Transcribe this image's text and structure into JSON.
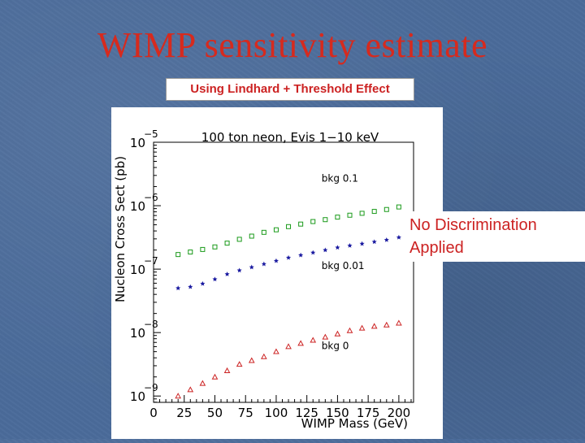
{
  "slide": {
    "title": "WIMP sensitivity estimate",
    "subtitle": "Using Lindhard + Threshold Effect",
    "note_line1": "No Discrimination",
    "note_line2": "Applied"
  },
  "colors": {
    "title": "#d62a1e",
    "background": "#4a6b9a",
    "bkg_0_1": "#1a9a1a",
    "bkg_0_01": "#1a1aa0",
    "bkg_0": "#cc2222"
  },
  "chart_data": {
    "type": "scatter",
    "title": "100 ton neon, Evis 1−10 keV",
    "xlabel": "WIMP Mass (GeV)",
    "ylabel": "Nucleon Cross Sect (pb)",
    "xlim": [
      0,
      212
    ],
    "ylim": [
      -9.1,
      -5
    ],
    "yscale": "log",
    "x_ticks": [
      "0",
      "25",
      "50",
      "75",
      "100",
      "125",
      "150",
      "175",
      "200"
    ],
    "y_ticks": [
      {
        "base": "10",
        "exp": "−5",
        "value": -5
      },
      {
        "base": "10",
        "exp": "−6",
        "value": -6
      },
      {
        "base": "10",
        "exp": "−7",
        "value": -7
      },
      {
        "base": "10",
        "exp": "−8",
        "value": -8
      },
      {
        "base": "10",
        "exp": "−9",
        "value": -9
      }
    ],
    "x": [
      20,
      30,
      40,
      50,
      60,
      70,
      80,
      90,
      100,
      110,
      120,
      130,
      140,
      150,
      160,
      170,
      180,
      190,
      200
    ],
    "series": [
      {
        "name": "bkg 0.1",
        "marker": "square",
        "values": [
          -6.77,
          -6.73,
          -6.69,
          -6.65,
          -6.59,
          -6.53,
          -6.48,
          -6.42,
          -6.38,
          -6.33,
          -6.29,
          -6.25,
          -6.22,
          -6.18,
          -6.15,
          -6.12,
          -6.09,
          -6.06,
          -6.02
        ]
      },
      {
        "name": "bkg 0.01",
        "marker": "star",
        "values": [
          -7.3,
          -7.28,
          -7.23,
          -7.16,
          -7.08,
          -7.02,
          -6.97,
          -6.92,
          -6.87,
          -6.82,
          -6.78,
          -6.74,
          -6.7,
          -6.66,
          -6.63,
          -6.6,
          -6.57,
          -6.54,
          -6.5
        ]
      },
      {
        "name": "bkg 0",
        "marker": "triangle",
        "values": [
          -9.0,
          -8.9,
          -8.8,
          -8.7,
          -8.6,
          -8.5,
          -8.44,
          -8.38,
          -8.3,
          -8.22,
          -8.17,
          -8.12,
          -8.07,
          -8.02,
          -7.97,
          -7.93,
          -7.9,
          -7.88,
          -7.85
        ]
      }
    ],
    "annotations": [
      {
        "text": "bkg 0.1",
        "series": "bkg 0.1",
        "at_x": 137,
        "at_y": -5.62
      },
      {
        "text": "bkg 0.01",
        "series": "bkg 0.01",
        "at_x": 137,
        "at_y": -7.0
      },
      {
        "text": "bkg 0",
        "series": "bkg 0",
        "at_x": 137,
        "at_y": -8.26
      }
    ]
  }
}
